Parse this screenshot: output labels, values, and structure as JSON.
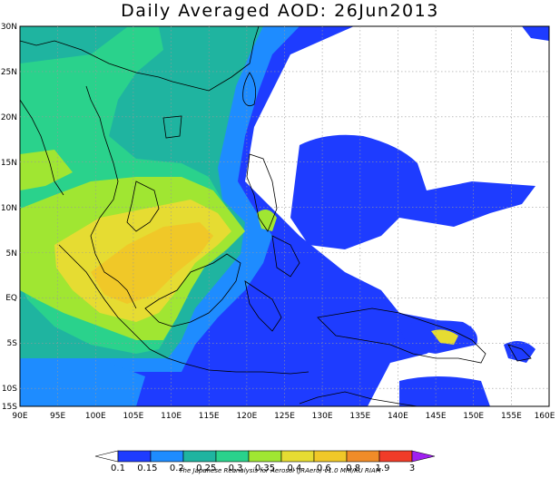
{
  "title": "Daily Averaged AOD: 26Jun2013",
  "lat_labels": [
    "30N",
    "25N",
    "20N",
    "15N",
    "10N",
    "5N",
    "EQ",
    "5S",
    "10S",
    "15S"
  ],
  "lon_labels": [
    "90E",
    "95E",
    "100E",
    "105E",
    "110E",
    "115E",
    "120E",
    "125E",
    "130E",
    "135E",
    "140E",
    "145E",
    "150E",
    "155E",
    "160E"
  ],
  "colorbar": {
    "levels": [
      "0.1",
      "0.15",
      "0.2",
      "0.25",
      "0.3",
      "0.35",
      "0.4",
      "0.6",
      "0.8",
      "1.9",
      "3"
    ],
    "colors": [
      "#ffffff",
      "#1e3cff",
      "#1e8cff",
      "#1fb4a0",
      "#2ad28c",
      "#a0e632",
      "#e6dc32",
      "#f0c828",
      "#f08c28",
      "#f03c28",
      "#a020f0"
    ]
  },
  "credit": "The Japanese Reanalysis for Aerosol (JRAero) v1.0 MRI/KU RIAM",
  "palette": {
    "blue": "#1e3cff",
    "lightblue": "#1e8cff",
    "teal": "#1fb4a0",
    "green": "#2ad28c",
    "lime": "#a0e632",
    "yellow": "#e6dc32",
    "orange": "#f0c828"
  }
}
